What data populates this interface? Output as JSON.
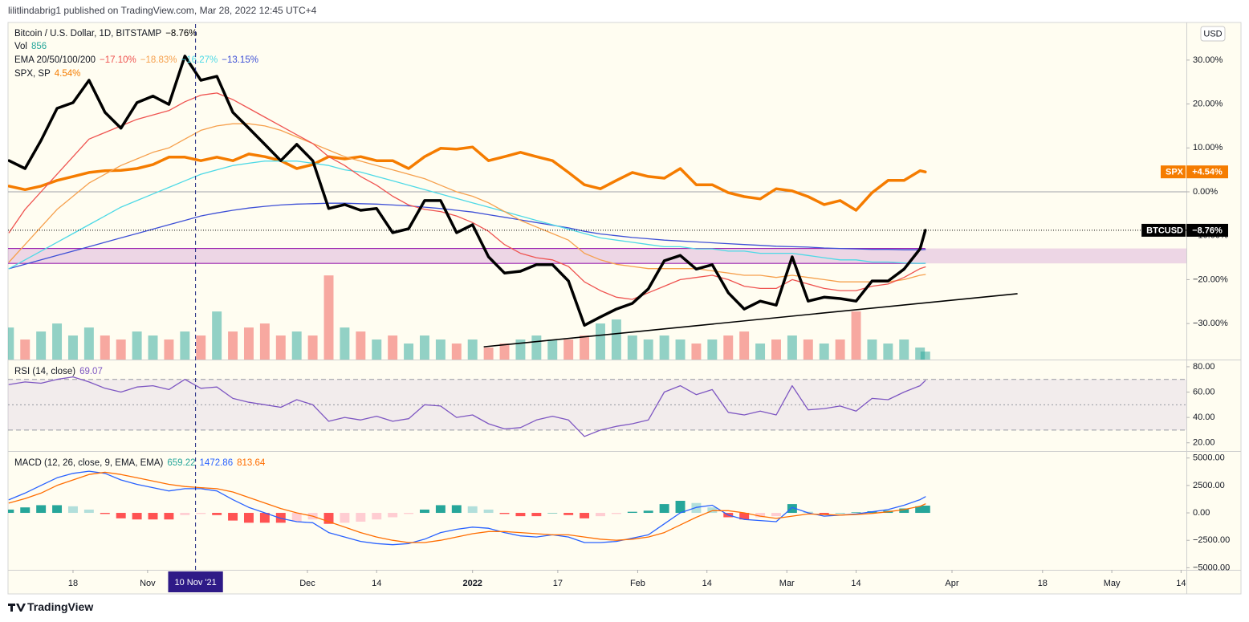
{
  "header": {
    "published": "lilitlindabrig1 published on TradingView.com, Mar 28, 2022 12:45 UTC+4"
  },
  "footer": {
    "brand": "TradingView"
  },
  "chart_data": [
    {
      "type": "line",
      "currency": "USD",
      "legend": [
        "Bitcoin / U.S. Dollar, 1D, BITSTAMP",
        "Vol",
        "EMA 20/50/100/200",
        "SPX, SP"
      ],
      "x": [
        -12,
        -9,
        -6,
        -3,
        0,
        3,
        6,
        9,
        12,
        15,
        18,
        21,
        24,
        27,
        30,
        33,
        36,
        39,
        42,
        45,
        48,
        51,
        54,
        57,
        60,
        63,
        66,
        69,
        72,
        75,
        78,
        81,
        84,
        87,
        90,
        93,
        96,
        99,
        102,
        105,
        108,
        111,
        114,
        117,
        120,
        123,
        126,
        129,
        132,
        135,
        138,
        141,
        144,
        147,
        150,
        153,
        156,
        159,
        160
      ],
      "xlim": [
        -12.2,
        209
      ],
      "ylim": [
        -38.2,
        38.2
      ],
      "yticks": [
        {
          "value": 30,
          "label": "30.00%"
        },
        {
          "value": 20,
          "label": "20.00%"
        },
        {
          "value": 10,
          "label": "10.00%"
        },
        {
          "value": 0,
          "label": "0.00%"
        },
        {
          "value": -10,
          "label": "−10.00%"
        },
        {
          "value": -20,
          "label": "−20.00%"
        },
        {
          "value": -30,
          "label": "−30.00%"
        }
      ],
      "baseline": 0,
      "zone": {
        "y": [
          -16.3,
          -12.9
        ],
        "color": "#9c27b0"
      },
      "trendline": {
        "x": [
          77.1,
          177.3
        ],
        "y": [
          -35.3,
          -23.2
        ],
        "color": "#000000"
      },
      "crosshair": {
        "x": 23,
        "label": "10 Nov '21"
      },
      "volume": {
        "ylim": [
          0,
          36000
        ],
        "up_color": "#26a69a",
        "down_color": "#ef5350",
        "values": [
          3440,
          2150,
          3010,
          3870,
          2580,
          3440,
          2580,
          2150,
          3010,
          2580,
          2150,
          3010,
          2580,
          5160,
          3010,
          3440,
          3870,
          2580,
          3010,
          2580,
          9030,
          3440,
          3010,
          2150,
          2580,
          1720,
          2580,
          2150,
          1720,
          2150,
          1290,
          1720,
          2150,
          2580,
          2150,
          2150,
          2580,
          3870,
          4300,
          2580,
          2150,
          2580,
          2150,
          1720,
          2150,
          2580,
          3010,
          1720,
          2150,
          2580,
          2150,
          1720,
          2150,
          5160,
          2150,
          1720,
          2150,
          1290,
          856
        ]
      },
      "series": [
        {
          "name": "BTCUSD",
          "color": "#000000",
          "legend_value": "−8.76%",
          "last_label": "−8.76%",
          "values": [
            7.1,
            5.3,
            11.7,
            19.0,
            20.3,
            25.4,
            18.1,
            14.5,
            20.3,
            21.8,
            19.9,
            30.9,
            25.4,
            26.3,
            18.1,
            14.5,
            10.8,
            7.1,
            10.8,
            7.1,
            -3.8,
            -2.9,
            -4.2,
            -3.8,
            -9.3,
            -8.4,
            -2.0,
            -2.0,
            -9.3,
            -7.5,
            -14.8,
            -18.5,
            -18.1,
            -16.6,
            -16.6,
            -20.3,
            -30.4,
            -28.5,
            -26.7,
            -25.4,
            -22.1,
            -15.7,
            -14.5,
            -17.6,
            -16.6,
            -23.0,
            -26.7,
            -24.9,
            -25.8,
            -14.8,
            -24.9,
            -24.0,
            -24.3,
            -24.9,
            -20.3,
            -20.3,
            -17.6,
            -13.0,
            -8.76
          ]
        },
        {
          "color": "#ef5350",
          "legend_value": "−17.10%",
          "values": [
            -9.3,
            -4,
            0,
            4,
            8,
            12,
            13.5,
            15,
            16.5,
            17.5,
            18.5,
            20.5,
            22,
            22.5,
            21,
            19,
            17,
            15,
            13,
            11,
            8,
            6,
            3.5,
            1.5,
            -1,
            -3,
            -4,
            -4.5,
            -5.5,
            -7,
            -9,
            -12,
            -14,
            -15,
            -15.5,
            -17,
            -20.5,
            -22.5,
            -24,
            -24.5,
            -23,
            -21.5,
            -20,
            -19.5,
            -19,
            -20,
            -21.5,
            -22,
            -22,
            -20,
            -21,
            -22,
            -22.5,
            -22.5,
            -21.5,
            -21,
            -19.5,
            -17.5,
            -17.1
          ]
        },
        {
          "color": "#f6a04d",
          "legend_value": "−18.83%",
          "values": [
            -16,
            -12,
            -8,
            -4,
            -1,
            2,
            4,
            6,
            7.5,
            9,
            10,
            12,
            14,
            15,
            15.5,
            15.5,
            15,
            14,
            12.5,
            11,
            9.5,
            8,
            7,
            6,
            5,
            4,
            3,
            1.5,
            0,
            -1,
            -2.5,
            -4.5,
            -6.5,
            -8,
            -9.5,
            -11,
            -14,
            -15.5,
            -16.5,
            -17,
            -17.5,
            -17.5,
            -17.5,
            -17.5,
            -18,
            -18.5,
            -19,
            -19,
            -19.5,
            -19,
            -19.5,
            -20,
            -20.5,
            -20.5,
            -20.5,
            -20.5,
            -20,
            -19,
            -18.83
          ]
        },
        {
          "color": "#4dd9e6",
          "legend_value": "−16.27%",
          "values": [
            -17.5,
            -15.5,
            -13.5,
            -11.5,
            -9.5,
            -7.5,
            -5.5,
            -3.5,
            -2,
            -0.5,
            1,
            2.5,
            4,
            5,
            6,
            6.5,
            7,
            7,
            7,
            6.5,
            6,
            5,
            4.5,
            3.5,
            2.5,
            1.5,
            0.5,
            -0.5,
            -1.5,
            -2.5,
            -3.5,
            -4.5,
            -5.5,
            -6.5,
            -7.5,
            -8.5,
            -9.5,
            -10.5,
            -11,
            -11.5,
            -12,
            -12.5,
            -12.5,
            -13,
            -13,
            -13.5,
            -13.5,
            -14,
            -14,
            -14,
            -14.5,
            -15,
            -15.5,
            -15.5,
            -16,
            -16,
            -16.2,
            -16.3,
            -16.27
          ]
        },
        {
          "color": "#3d4fd6",
          "legend_value": "−13.15%",
          "values": [
            -17.5,
            -16.5,
            -15.5,
            -14.5,
            -13.5,
            -12.5,
            -11.5,
            -10.5,
            -9.5,
            -8.5,
            -7.5,
            -6.5,
            -5.5,
            -4.8,
            -4.2,
            -3.7,
            -3.3,
            -3,
            -2.8,
            -2.7,
            -2.6,
            -2.6,
            -2.7,
            -2.8,
            -3,
            -3.2,
            -3.5,
            -3.8,
            -4.2,
            -4.6,
            -5.2,
            -5.8,
            -6.4,
            -7,
            -7.6,
            -8.2,
            -9,
            -9.6,
            -10,
            -10.4,
            -10.7,
            -11,
            -11.2,
            -11.4,
            -11.6,
            -11.8,
            -12,
            -12.2,
            -12.4,
            -12.5,
            -12.6,
            -12.8,
            -12.9,
            -13,
            -13.1,
            -13.1,
            -13.2,
            -13.2,
            -13.15
          ]
        },
        {
          "name": "SPX",
          "color": "#f57c00",
          "legend_value": "4.54%",
          "last_label": "+4.54%",
          "values": [
            1.3,
            0.5,
            1.3,
            2.6,
            3.5,
            4.4,
            4.8,
            4.9,
            5.3,
            6.2,
            7.9,
            7.9,
            7.1,
            7.9,
            7.1,
            8.6,
            8.0,
            7.1,
            5.3,
            6.2,
            8.0,
            7.5,
            8.0,
            7.1,
            7.1,
            5.3,
            8.0,
            9.9,
            9.7,
            10.2,
            7.1,
            8.0,
            9.0,
            8.0,
            7.1,
            4.4,
            1.6,
            0.7,
            2.6,
            4.4,
            3.5,
            3.1,
            5.3,
            1.6,
            1.6,
            -0.2,
            -1.1,
            -1.6,
            0.7,
            0.2,
            -1.1,
            -2.9,
            -2.0,
            -4.2,
            -0.2,
            2.6,
            2.6,
            4.8,
            4.54
          ]
        }
      ]
    },
    {
      "type": "line",
      "title": "RSI (14, close)",
      "x": [
        -12,
        -9,
        -6,
        -3,
        0,
        3,
        6,
        9,
        12,
        15,
        18,
        21,
        24,
        27,
        30,
        33,
        36,
        39,
        42,
        45,
        48,
        51,
        54,
        57,
        60,
        63,
        66,
        69,
        72,
        75,
        78,
        81,
        84,
        87,
        90,
        93,
        96,
        99,
        102,
        105,
        108,
        111,
        114,
        117,
        120,
        123,
        126,
        129,
        132,
        135,
        138,
        141,
        144,
        147,
        150,
        153,
        156,
        159,
        160
      ],
      "xlim": [
        -12.2,
        209
      ],
      "ylim": [
        13.5,
        84.4
      ],
      "yticks": [
        {
          "value": 80,
          "label": "80.00"
        },
        {
          "value": 60,
          "label": "60.00"
        },
        {
          "value": 40,
          "label": "40.00"
        },
        {
          "value": 20,
          "label": "20.00"
        }
      ],
      "levels": [
        70,
        50,
        30
      ],
      "band_color": "#7e57c2",
      "series": [
        {
          "color": "#7e57c2",
          "values": [
            66,
            68,
            67,
            70,
            72,
            68,
            63,
            60,
            64,
            65,
            62,
            70,
            63,
            64,
            55,
            52,
            50,
            48,
            54,
            50,
            37,
            40,
            38,
            41,
            37,
            39,
            50,
            49,
            40,
            42,
            35,
            31,
            32,
            38,
            41,
            38,
            25,
            30,
            33,
            35,
            38,
            60,
            65,
            58,
            62,
            44,
            42,
            45,
            42,
            65,
            46,
            47,
            49,
            45,
            55,
            54,
            60,
            65,
            69.07
          ]
        }
      ]
    },
    {
      "type": "macd",
      "title": "MACD (12, 26, close, 9, EMA, EMA)",
      "x": [
        -12,
        -9,
        -6,
        -3,
        0,
        3,
        6,
        9,
        12,
        15,
        18,
        21,
        24,
        27,
        30,
        33,
        36,
        39,
        42,
        45,
        48,
        51,
        54,
        57,
        60,
        63,
        66,
        69,
        72,
        75,
        78,
        81,
        84,
        87,
        90,
        93,
        96,
        99,
        102,
        105,
        108,
        111,
        114,
        117,
        120,
        123,
        126,
        129,
        132,
        135,
        138,
        141,
        144,
        147,
        150,
        153,
        156,
        159,
        160
      ],
      "xlim": [
        -12.2,
        209
      ],
      "xticks": [
        {
          "value": 0,
          "label": "18"
        },
        {
          "value": 14,
          "label": "Nov"
        },
        {
          "value": 44,
          "label": "Dec"
        },
        {
          "value": 57,
          "label": "14"
        },
        {
          "value": 75,
          "label": "2022"
        },
        {
          "value": 91,
          "label": "17"
        },
        {
          "value": 106,
          "label": "Feb"
        },
        {
          "value": 119,
          "label": "14"
        },
        {
          "value": 134,
          "label": "Mar"
        },
        {
          "value": 147,
          "label": "14"
        },
        {
          "value": 165,
          "label": "Apr"
        },
        {
          "value": 182,
          "label": "18"
        },
        {
          "value": 195,
          "label": "May"
        },
        {
          "value": 208,
          "label": "14"
        }
      ],
      "ylim": [
        -5190,
        5560
      ],
      "yticks": [
        {
          "value": 5000,
          "label": "5000.00"
        },
        {
          "value": 2500,
          "label": "2500.00"
        },
        {
          "value": 0,
          "label": "0.00"
        },
        {
          "value": -2500,
          "label": "−2500.00"
        },
        {
          "value": -5000,
          "label": "−5000.00"
        }
      ],
      "histogram": {
        "color_up": "#26a69a",
        "color_up_fading": "#b2dfdb",
        "color_down": "#ff5252",
        "color_down_fading": "#ffcdd2",
        "values": [
          300,
          500,
          700,
          700,
          600,
          300,
          -100,
          -500,
          -600,
          -600,
          -600,
          -200,
          -100,
          -200,
          -700,
          -900,
          -900,
          -900,
          -800,
          -600,
          -1000,
          -900,
          -800,
          -600,
          -400,
          -100,
          300,
          700,
          700,
          600,
          300,
          -100,
          -300,
          -300,
          0,
          -200,
          -500,
          -300,
          -100,
          100,
          200,
          800,
          1100,
          900,
          500,
          -400,
          -600,
          -400,
          -300,
          800,
          100,
          -150,
          0,
          50,
          150,
          200,
          400,
          600,
          659.22
        ]
      },
      "series": [
        {
          "color": "#2962ff",
          "values": [
            1200,
            1800,
            2500,
            3200,
            3600,
            3800,
            3600,
            3000,
            2600,
            2300,
            2000,
            2200,
            2200,
            2000,
            1200,
            500,
            0,
            -500,
            -800,
            -900,
            -1800,
            -2200,
            -2600,
            -2800,
            -2900,
            -2800,
            -2400,
            -1800,
            -1500,
            -1300,
            -1400,
            -1800,
            -2100,
            -2200,
            -2000,
            -2200,
            -2700,
            -2700,
            -2600,
            -2300,
            -2000,
            -1000,
            0,
            500,
            700,
            -200,
            -600,
            -700,
            -800,
            500,
            0,
            -300,
            -200,
            -100,
            100,
            300,
            700,
            1200,
            1472.86
          ]
        },
        {
          "color": "#ff6d00",
          "values": [
            900,
            1300,
            1800,
            2500,
            3000,
            3500,
            3700,
            3500,
            3200,
            2900,
            2600,
            2400,
            2300,
            2200,
            1900,
            1400,
            900,
            400,
            0,
            -300,
            -800,
            -1300,
            -1800,
            -2200,
            -2500,
            -2700,
            -2700,
            -2500,
            -2200,
            -1900,
            -1700,
            -1700,
            -1800,
            -1900,
            -2000,
            -2000,
            -2200,
            -2400,
            -2500,
            -2400,
            -2200,
            -1800,
            -1100,
            -400,
            200,
            200,
            0,
            -300,
            -500,
            -300,
            -100,
            -150,
            -200,
            -150,
            -50,
            100,
            300,
            600,
            813.64
          ]
        }
      ]
    }
  ]
}
